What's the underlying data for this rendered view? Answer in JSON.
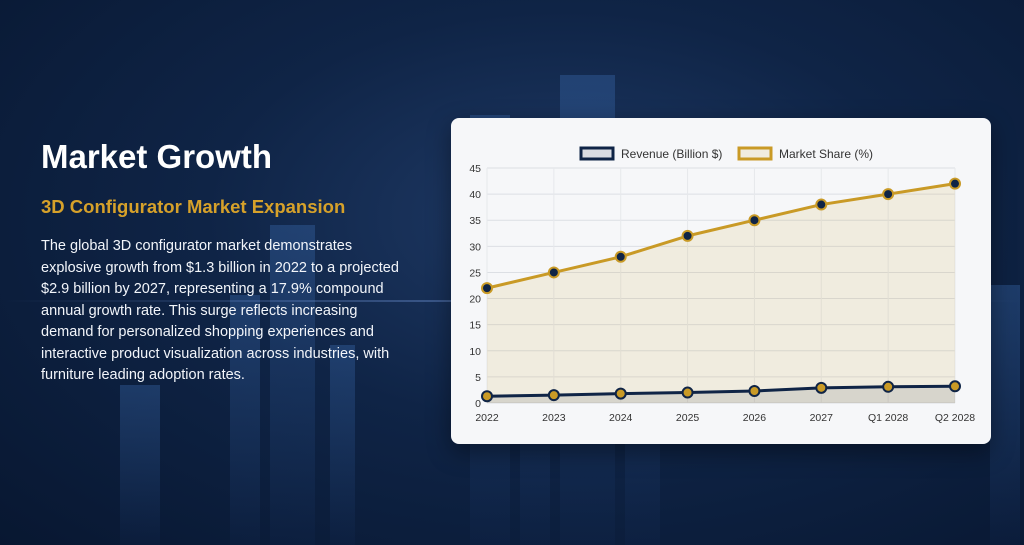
{
  "heading": "Market Growth",
  "subheading": "3D Configurator Market Expansion",
  "paragraph": "The global 3D configurator market demonstrates explosive growth from $1.3 billion in 2022 to a projected $2.9 billion by 2027, representing a 17.9% compound annual growth rate. This surge reflects increasing demand for personalized shopping experiences and interactive product visualization across industries, with furniture leading adoption rates.",
  "colors": {
    "revenue": "#0f2446",
    "share": "#c99a26",
    "accent_text": "#d6a12a"
  },
  "chart_data": {
    "type": "line",
    "categories": [
      "2022",
      "2023",
      "2024",
      "2025",
      "2026",
      "2027",
      "Q1 2028",
      "Q2 2028"
    ],
    "series": [
      {
        "name": "Revenue (Billion $)",
        "values": [
          1.3,
          1.5,
          1.8,
          2.0,
          2.3,
          2.9,
          3.1,
          3.2
        ]
      },
      {
        "name": "Market Share (%)",
        "values": [
          22,
          25,
          28,
          32,
          35,
          38,
          40,
          42
        ]
      }
    ],
    "yticks": [
      "0",
      "5",
      "10",
      "15",
      "20",
      "25",
      "30",
      "35",
      "40",
      "45"
    ],
    "ylim": [
      0,
      45
    ],
    "grid": true,
    "legend_position": "top"
  }
}
